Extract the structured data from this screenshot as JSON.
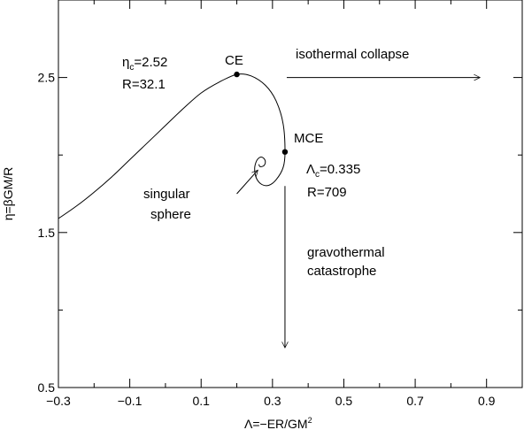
{
  "chart_data": {
    "type": "line",
    "xlabel_parts": [
      "Λ=−ER/GM",
      "2"
    ],
    "ylabel": "η=βGM/R",
    "xlim": [
      -0.3,
      1.0
    ],
    "ylim": [
      0.5,
      3.0
    ],
    "x_ticks": [
      -0.3,
      -0.1,
      0.1,
      0.3,
      0.5,
      0.7,
      0.9
    ],
    "x_tick_labels": [
      "−0.3",
      "−0.1",
      "0.1",
      "0.3",
      "0.5",
      "0.7",
      "0.9"
    ],
    "y_ticks": [
      0.5,
      1.5,
      2.5
    ],
    "y_tick_labels": [
      "0.5",
      "1.5",
      "2.5"
    ],
    "grid": false,
    "series": [
      {
        "points": [
          [
            -0.3,
            1.59
          ],
          [
            -0.25,
            1.67
          ],
          [
            -0.2,
            1.76
          ],
          [
            -0.15,
            1.86
          ],
          [
            -0.1,
            1.97
          ],
          [
            -0.05,
            2.08
          ],
          [
            0.0,
            2.19
          ],
          [
            0.05,
            2.3
          ],
          [
            0.1,
            2.4
          ],
          [
            0.15,
            2.47
          ],
          [
            0.2,
            2.52
          ],
          [
            0.24,
            2.51
          ],
          [
            0.28,
            2.45
          ],
          [
            0.31,
            2.35
          ],
          [
            0.33,
            2.2
          ],
          [
            0.335,
            2.02
          ],
          [
            0.33,
            1.92
          ],
          [
            0.31,
            1.84
          ],
          [
            0.29,
            1.805
          ],
          [
            0.27,
            1.81
          ],
          [
            0.255,
            1.85
          ],
          [
            0.25,
            1.91
          ],
          [
            0.255,
            1.96
          ],
          [
            0.265,
            1.985
          ],
          [
            0.275,
            1.98
          ],
          [
            0.28,
            1.955
          ],
          [
            0.275,
            1.93
          ],
          [
            0.265,
            1.925
          ],
          [
            0.262,
            1.94
          ]
        ]
      }
    ],
    "points": [
      {
        "label": "CE",
        "x": 0.2,
        "y": 2.52
      },
      {
        "label": "MCE",
        "x": 0.335,
        "y": 2.02
      }
    ],
    "annotations": {
      "eta_c_lines": [
        "η",
        "c",
        "=2.52"
      ],
      "r_ce": "R=32.1",
      "ce": "CE",
      "isothermal": "isothermal collapse",
      "mce": "MCE",
      "lambda_c_lines": [
        "Λ",
        "c",
        "=0.335"
      ],
      "r_mce": "R=709",
      "singular_1": "singular",
      "singular_2": "sphere",
      "gravothermal_1": "gravothermal",
      "gravothermal_2": "catastrophe"
    },
    "arrows": [
      {
        "name": "isothermal-arrow",
        "from": [
          0.34,
          2.5
        ],
        "to": [
          0.88,
          2.5
        ]
      },
      {
        "name": "gravothermal-arrow",
        "from": [
          0.335,
          1.8
        ],
        "to": [
          0.335,
          0.76
        ]
      },
      {
        "name": "singular-arrow",
        "from": [
          0.2,
          1.75
        ],
        "to": [
          0.258,
          1.9
        ]
      }
    ]
  }
}
